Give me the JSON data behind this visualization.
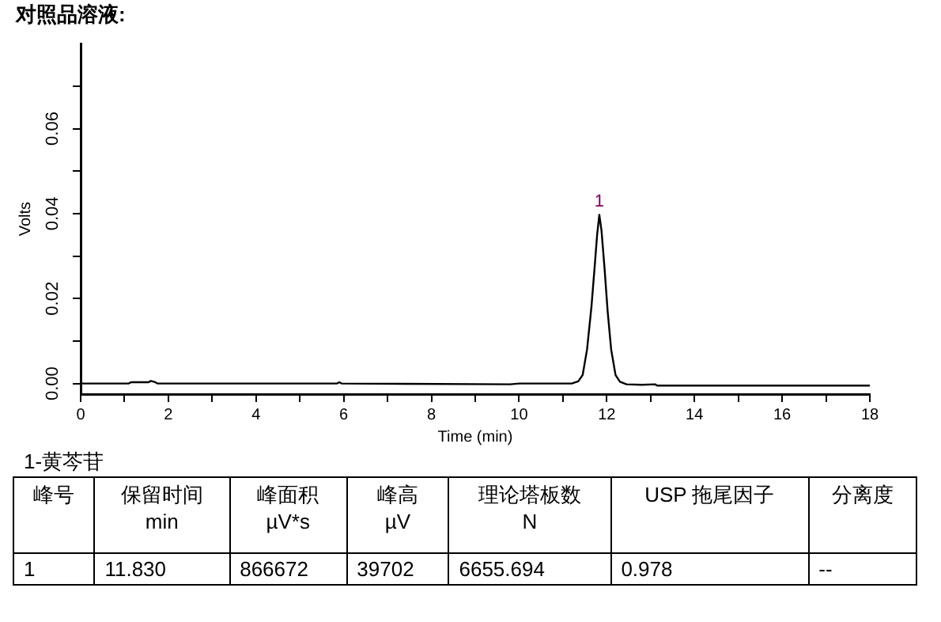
{
  "chart_data": {
    "type": "line",
    "title": "对照品溶液:",
    "xlabel": "Time (min)",
    "ylabel": "Volts",
    "x": [
      0,
      1.1,
      1.15,
      1.55,
      1.6,
      1.7,
      1.75,
      5.85,
      5.9,
      5.95,
      9.8,
      10,
      11.2,
      11.35,
      11.45,
      11.55,
      11.65,
      11.72,
      11.78,
      11.83,
      11.88,
      11.95,
      12.02,
      12.1,
      12.2,
      12.3,
      12.45,
      12.8,
      13.1,
      13.15,
      18
    ],
    "series": [
      {
        "color": "#000000",
        "values": [
          0,
          0,
          0.0003,
          0.0003,
          0.0006,
          0.0003,
          0,
          0,
          0.0003,
          0,
          -0.0002,
          0,
          0,
          0.0005,
          0.002,
          0.008,
          0.018,
          0.027,
          0.035,
          0.0397,
          0.036,
          0.027,
          0.017,
          0.008,
          0.002,
          0.0004,
          -0.0002,
          -0.0003,
          -0.0002,
          -0.0005,
          -0.0005
        ]
      }
    ],
    "xlim": [
      0,
      18
    ],
    "xticks": [
      0,
      {
        "value": 1,
        "label": null
      },
      2,
      {
        "value": 3,
        "label": null
      },
      4,
      {
        "value": 5,
        "label": null
      },
      6,
      {
        "value": 7,
        "label": null
      },
      8,
      {
        "value": 9,
        "label": null
      },
      10,
      {
        "value": 11,
        "label": null
      },
      12,
      {
        "value": 13,
        "label": null
      },
      14,
      {
        "value": 15,
        "label": null
      },
      16,
      {
        "value": 17,
        "label": null
      },
      18
    ],
    "ylim": [
      -0.0025,
      0.08
    ],
    "yticks": [
      {
        "value": 0,
        "label": "0.00"
      },
      {
        "value": 0.01,
        "label": null
      },
      {
        "value": 0.02,
        "label": "0.02"
      },
      {
        "value": 0.03,
        "label": null
      },
      {
        "value": 0.04,
        "label": "0.04"
      },
      {
        "value": 0.05,
        "label": null
      },
      {
        "value": 0.06,
        "label": "0.06"
      },
      {
        "value": 0.07,
        "label": null
      }
    ],
    "grid": false,
    "legend": false,
    "marker": "none",
    "line_style": "solid",
    "annotations": [
      {
        "text": "1",
        "x": 11.83,
        "y": 0.0397
      },
      "1-黄芩苷",
      "峰号",
      "保留时间\nmin",
      "峰面积\nµV*s",
      "峰高\nµV",
      "理论塔板数\nN",
      "USP 拖尾因子",
      "分离度",
      "1",
      "11.830",
      "866672",
      "39702",
      "6655.694",
      "0.978",
      "--"
    ]
  }
}
